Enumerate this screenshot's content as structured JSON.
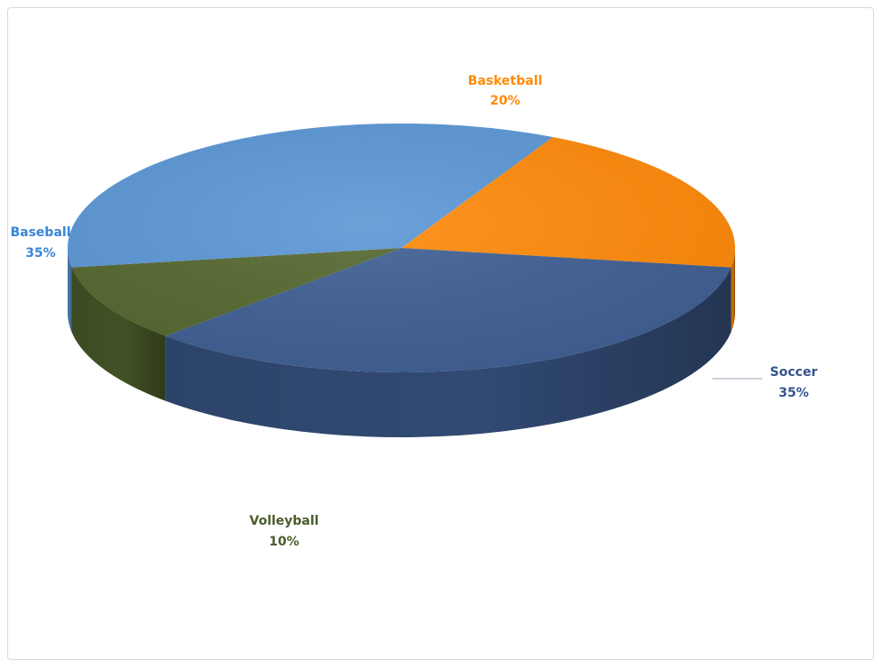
{
  "chart_data": {
    "type": "pie",
    "title": "",
    "legend": "none",
    "slices": [
      {
        "name": "Basketball",
        "value": 20,
        "label": "20%",
        "color": "#ff8a0a"
      },
      {
        "name": "Soccer",
        "value": 35,
        "label": "35%",
        "color": "#3f5f93"
      },
      {
        "name": "Volleyball",
        "value": 10,
        "label": "10%",
        "color": "#556830"
      },
      {
        "name": "Baseball",
        "value": 35,
        "label": "35%",
        "color": "#5c97d6"
      }
    ]
  }
}
